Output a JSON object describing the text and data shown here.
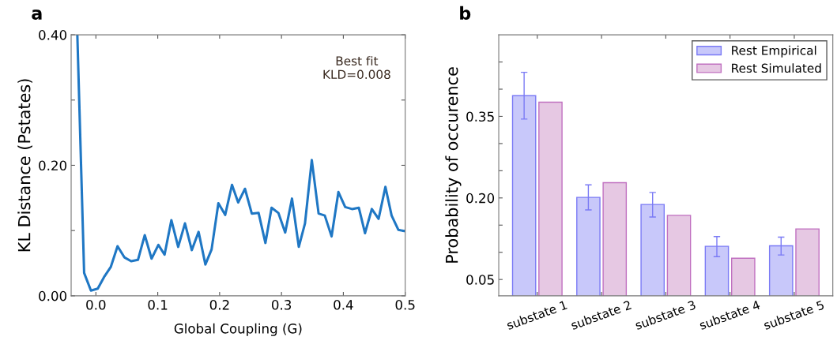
{
  "chart_data": [
    {
      "type": "line",
      "title": "a",
      "xlabel": "Global Coupling (G)",
      "ylabel": "KL Distance (Pstates)",
      "x": [
        -0.03,
        -0.019,
        -0.008,
        0.003,
        0.014,
        0.024,
        0.035,
        0.046,
        0.057,
        0.068,
        0.079,
        0.09,
        0.101,
        0.111,
        0.122,
        0.133,
        0.144,
        0.155,
        0.166,
        0.177,
        0.187,
        0.198,
        0.209,
        0.22,
        0.23,
        0.241,
        0.252,
        0.263,
        0.274,
        0.284,
        0.295,
        0.306,
        0.317,
        0.328,
        0.338,
        0.349,
        0.36,
        0.37,
        0.381,
        0.392,
        0.403,
        0.414,
        0.425,
        0.435,
        0.446,
        0.457,
        0.468,
        0.478,
        0.489,
        0.5
      ],
      "series": [
        {
          "color": "#1f77c4",
          "values": [
            0.4,
            0.035,
            0.008,
            0.011,
            0.03,
            0.044,
            0.076,
            0.059,
            0.053,
            0.055,
            0.093,
            0.057,
            0.078,
            0.063,
            0.116,
            0.075,
            0.111,
            0.07,
            0.098,
            0.048,
            0.071,
            0.142,
            0.124,
            0.17,
            0.143,
            0.164,
            0.126,
            0.127,
            0.081,
            0.135,
            0.127,
            0.097,
            0.149,
            0.075,
            0.111,
            0.208,
            0.126,
            0.123,
            0.091,
            0.159,
            0.136,
            0.133,
            0.135,
            0.096,
            0.133,
            0.118,
            0.167,
            0.123,
            0.101,
            0.099
          ]
        }
      ],
      "xlim": [
        -0.04,
        0.5
      ],
      "xticks": [
        {
          "value": 0,
          "label": "0.0"
        },
        0.1,
        0.2,
        0.3,
        0.4,
        0.5
      ],
      "ylim": [
        0,
        0.4
      ],
      "yticks": [
        {
          "value": 0,
          "label": "0.00"
        },
        {
          "value": 0.1,
          "label": null
        },
        {
          "value": 0.2,
          "label": "0.20"
        },
        {
          "value": 0.3,
          "label": null
        },
        {
          "value": 0.4,
          "label": "0.40"
        }
      ],
      "annotations": [
        "Best fit\nKLD=0.008"
      ],
      "grid": false,
      "legend": false,
      "marker": "none",
      "line_style": "solid"
    },
    {
      "type": "bar",
      "title": "b",
      "ylabel": "Probability of occurence",
      "categories": [
        "substate 1",
        "substate 2",
        "substate 3",
        "substate 4",
        "substate 5"
      ],
      "series": [
        {
          "name": "Rest Empirical",
          "color": "#c8c8fa",
          "values": [
            0.388,
            0.201,
            0.188,
            0.111,
            0.112
          ],
          "errors": [
            [
              0.345,
              0.431
            ],
            [
              0.178,
              0.224
            ],
            [
              0.165,
              0.21
            ],
            [
              0.092,
              0.129
            ],
            [
              0.095,
              0.128
            ]
          ]
        },
        {
          "name": "Rest Simulated",
          "color": "#e6c8e3",
          "values": [
            0.376,
            0.228,
            0.168,
            0.089,
            0.143
          ]
        }
      ],
      "ylim": [
        0.02,
        0.5
      ],
      "yticks": [
        {
          "value": 0.05,
          "label": "0.05"
        },
        {
          "value": 0.1,
          "label": null
        },
        {
          "value": 0.15,
          "label": null
        },
        {
          "value": 0.2,
          "label": "0.20"
        },
        {
          "value": 0.25,
          "label": null
        },
        {
          "value": 0.3,
          "label": null
        },
        {
          "value": 0.35,
          "label": "0.35"
        },
        {
          "value": 0.4,
          "label": null
        },
        {
          "value": 0.45,
          "label": null
        }
      ],
      "grid": false,
      "legend": "top right"
    }
  ]
}
